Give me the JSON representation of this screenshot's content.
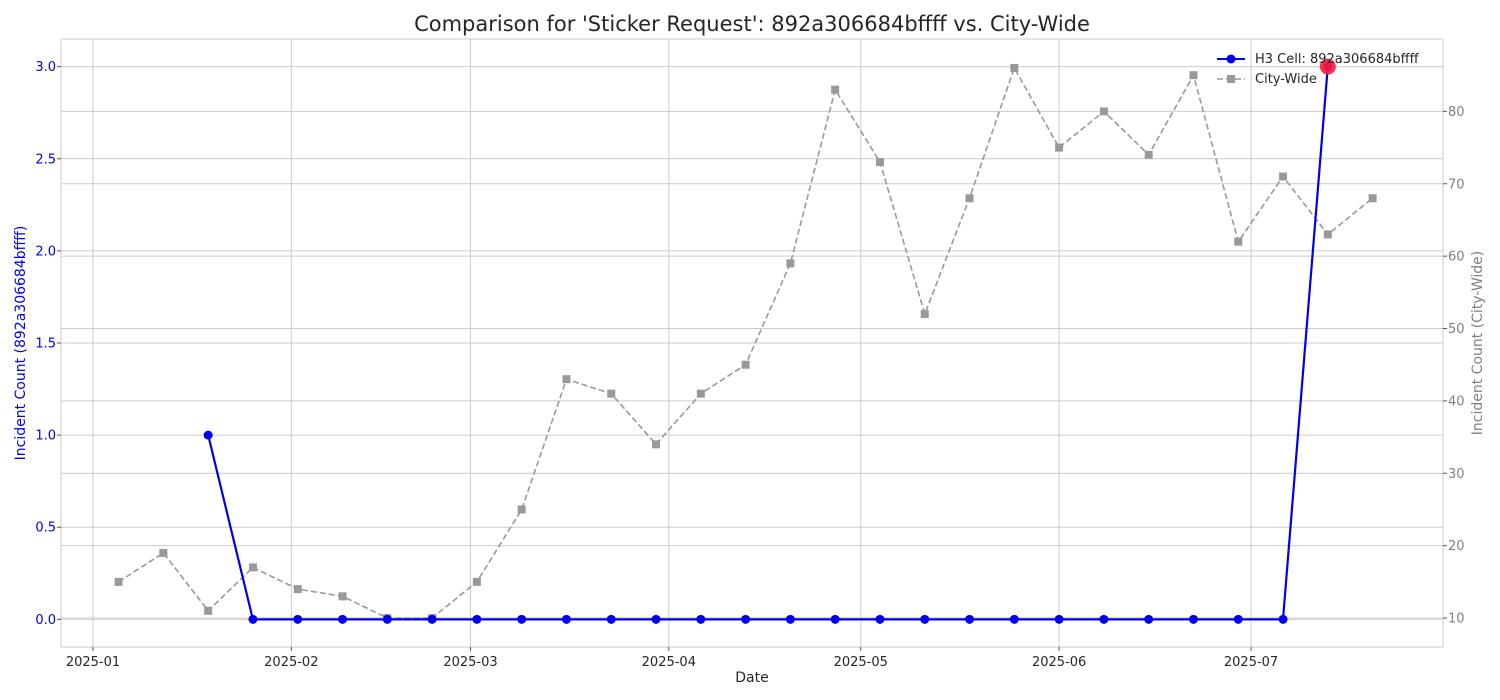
{
  "chart_data": {
    "type": "line",
    "title": "Comparison for 'Sticker Request': 892a306684bffff vs. City-Wide",
    "xlabel": "Date",
    "ylabel_left": "Incident Count (892a306684bffff)",
    "ylabel_right": "Incident Count (City-Wide)",
    "left_axis_color": "#0000ee",
    "right_axis_color": "#808080",
    "grid": true,
    "legend_position": "top-right",
    "x_ticks": [
      {
        "date": "2025-01-01",
        "label": "2025-01"
      },
      {
        "date": "2025-02-01",
        "label": "2025-02"
      },
      {
        "date": "2025-03-01",
        "label": "2025-03"
      },
      {
        "date": "2025-04-01",
        "label": "2025-04"
      },
      {
        "date": "2025-05-01",
        "label": "2025-05"
      },
      {
        "date": "2025-06-01",
        "label": "2025-06"
      },
      {
        "date": "2025-07-01",
        "label": "2025-07"
      }
    ],
    "xlim": [
      "2024-12-27",
      "2025-07-31"
    ],
    "ylim_left": [
      -0.15,
      3.15
    ],
    "yticks_left": [
      "0.0",
      "0.5",
      "1.0",
      "1.5",
      "2.0",
      "2.5",
      "3.0"
    ],
    "ylim_right": [
      6,
      90
    ],
    "yticks_right": [
      "10",
      "20",
      "30",
      "40",
      "50",
      "60",
      "70",
      "80"
    ],
    "series": [
      {
        "name": "H3 Cell: 892a306684bffff",
        "axis": "left",
        "color": "#0000ee",
        "style": "solid",
        "marker": "circle",
        "x": [
          "2025-01-19",
          "2025-01-26",
          "2025-02-02",
          "2025-02-09",
          "2025-02-16",
          "2025-02-23",
          "2025-03-02",
          "2025-03-09",
          "2025-03-16",
          "2025-03-23",
          "2025-03-30",
          "2025-04-06",
          "2025-04-13",
          "2025-04-20",
          "2025-04-27",
          "2025-05-04",
          "2025-05-11",
          "2025-05-18",
          "2025-05-25",
          "2025-06-01",
          "2025-06-08",
          "2025-06-15",
          "2025-06-22",
          "2025-06-29",
          "2025-07-06",
          "2025-07-13"
        ],
        "values": [
          1,
          0,
          0,
          0,
          0,
          0,
          0,
          0,
          0,
          0,
          0,
          0,
          0,
          0,
          0,
          0,
          0,
          0,
          0,
          0,
          0,
          0,
          0,
          0,
          0,
          3
        ]
      },
      {
        "name": "City-Wide",
        "axis": "right",
        "color": "#999999",
        "style": "dashed",
        "marker": "square",
        "x": [
          "2025-01-05",
          "2025-01-12",
          "2025-01-19",
          "2025-01-26",
          "2025-02-02",
          "2025-02-09",
          "2025-02-16",
          "2025-02-23",
          "2025-03-02",
          "2025-03-09",
          "2025-03-16",
          "2025-03-23",
          "2025-03-30",
          "2025-04-06",
          "2025-04-13",
          "2025-04-20",
          "2025-04-27",
          "2025-05-04",
          "2025-05-11",
          "2025-05-18",
          "2025-05-25",
          "2025-06-01",
          "2025-06-08",
          "2025-06-15",
          "2025-06-22",
          "2025-06-29",
          "2025-07-06",
          "2025-07-13",
          "2025-07-20"
        ],
        "values": [
          15,
          19,
          11,
          17,
          14,
          13,
          10,
          10,
          15,
          25,
          43,
          41,
          34,
          41,
          45,
          59,
          83,
          73,
          52,
          68,
          86,
          75,
          80,
          74,
          85,
          62,
          71,
          63,
          68
        ]
      }
    ],
    "highlight": {
      "x": "2025-07-13",
      "value": 3,
      "axis": "left",
      "color": "#ff1a3c"
    }
  }
}
